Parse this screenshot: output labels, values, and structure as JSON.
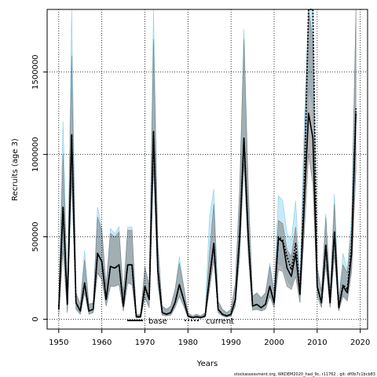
{
  "chart_data": {
    "type": "line",
    "xlabel": "Years",
    "ylabel": "Recruits (age 3)",
    "xlim": [
      1947.3,
      2021.7
    ],
    "ylim": [
      -60000,
      1880000
    ],
    "xticks": [
      1950,
      1960,
      1970,
      1980,
      1990,
      2000,
      2010,
      2020
    ],
    "yticks": [
      0,
      500000,
      1000000,
      1500000
    ],
    "ytick_labels": [
      "0",
      "500000",
      "1000000",
      "1500000"
    ],
    "grid": true,
    "legend_position": "bottom-center",
    "x": [
      1950,
      1951,
      1952,
      1953,
      1954,
      1955,
      1956,
      1957,
      1958,
      1959,
      1960,
      1961,
      1962,
      1963,
      1964,
      1965,
      1966,
      1967,
      1968,
      1969,
      1970,
      1971,
      1972,
      1973,
      1974,
      1975,
      1976,
      1977,
      1978,
      1979,
      1980,
      1981,
      1982,
      1983,
      1984,
      1985,
      1986,
      1987,
      1988,
      1989,
      1990,
      1991,
      1992,
      1993,
      1994,
      1995,
      1996,
      1997,
      1998,
      1999,
      2000,
      2001,
      2002,
      2003,
      2004,
      2005,
      2006,
      2007,
      2008,
      2009,
      2010,
      2011,
      2012,
      2013,
      2014,
      2015,
      2016,
      2017,
      2018,
      2019
    ],
    "series": [
      {
        "name": "base",
        "color": "#000000",
        "dash": "solid",
        "band_color": "#808080",
        "values": [
          60000,
          680000,
          90000,
          1120000,
          100000,
          50000,
          220000,
          50000,
          60000,
          400000,
          350000,
          120000,
          320000,
          310000,
          330000,
          80000,
          330000,
          330000,
          15000,
          15000,
          200000,
          120000,
          1140000,
          300000,
          40000,
          30000,
          40000,
          100000,
          210000,
          120000,
          20000,
          10000,
          15000,
          10000,
          20000,
          250000,
          460000,
          60000,
          30000,
          20000,
          30000,
          120000,
          500000,
          1100000,
          500000,
          80000,
          90000,
          70000,
          90000,
          200000,
          100000,
          490000,
          470000,
          310000,
          260000,
          400000,
          150000,
          700000,
          1250000,
          1100000,
          200000,
          100000,
          450000,
          100000,
          530000,
          70000,
          200000,
          160000,
          400000,
          1250000
        ],
        "lower": [
          20000,
          420000,
          40000,
          860000,
          60000,
          30000,
          160000,
          30000,
          40000,
          280000,
          240000,
          80000,
          200000,
          200000,
          210000,
          50000,
          220000,
          210000,
          8000,
          8000,
          130000,
          70000,
          930000,
          210000,
          25000,
          20000,
          25000,
          70000,
          140000,
          80000,
          12000,
          6000,
          9000,
          6000,
          12000,
          180000,
          360000,
          40000,
          20000,
          12000,
          20000,
          80000,
          380000,
          950000,
          390000,
          55000,
          60000,
          50000,
          60000,
          140000,
          70000,
          300000,
          290000,
          200000,
          180000,
          260000,
          100000,
          520000,
          1000000,
          820000,
          140000,
          70000,
          330000,
          70000,
          390000,
          50000,
          140000,
          110000,
          290000,
          900000
        ],
        "upper": [
          120000,
          1000000,
          150000,
          1600000,
          160000,
          90000,
          360000,
          90000,
          100000,
          620000,
          540000,
          200000,
          520000,
          500000,
          530000,
          150000,
          540000,
          540000,
          30000,
          30000,
          320000,
          200000,
          1700000,
          460000,
          80000,
          60000,
          80000,
          180000,
          340000,
          200000,
          40000,
          20000,
          30000,
          20000,
          40000,
          400000,
          700000,
          110000,
          60000,
          40000,
          60000,
          220000,
          780000,
          1700000,
          780000,
          140000,
          160000,
          130000,
          160000,
          320000,
          170000,
          600000,
          580000,
          420000,
          380000,
          560000,
          230000,
          1000000,
          1880000,
          1700000,
          320000,
          170000,
          620000,
          170000,
          700000,
          120000,
          330000,
          280000,
          560000,
          1880000
        ]
      },
      {
        "name": "current",
        "color": "#000000",
        "dash": "dotted",
        "band_color": "#87ceeb",
        "values": [
          60000,
          680000,
          90000,
          1120000,
          100000,
          50000,
          220000,
          50000,
          60000,
          400000,
          350000,
          120000,
          320000,
          310000,
          330000,
          80000,
          330000,
          330000,
          15000,
          15000,
          200000,
          120000,
          1140000,
          300000,
          40000,
          30000,
          40000,
          100000,
          210000,
          120000,
          20000,
          10000,
          15000,
          10000,
          20000,
          250000,
          460000,
          60000,
          30000,
          20000,
          30000,
          120000,
          500000,
          1100000,
          500000,
          80000,
          90000,
          70000,
          90000,
          200000,
          100000,
          500000,
          480000,
          380000,
          300000,
          460000,
          150000,
          800000,
          1880000,
          1880000,
          200000,
          100000,
          450000,
          100000,
          530000,
          70000,
          210000,
          180000,
          450000,
          1280000
        ],
        "lower": [
          20000,
          420000,
          40000,
          860000,
          60000,
          30000,
          160000,
          30000,
          40000,
          280000,
          240000,
          80000,
          200000,
          200000,
          210000,
          50000,
          220000,
          210000,
          8000,
          8000,
          130000,
          70000,
          930000,
          210000,
          25000,
          20000,
          25000,
          70000,
          140000,
          80000,
          12000,
          6000,
          9000,
          6000,
          12000,
          180000,
          360000,
          40000,
          20000,
          12000,
          20000,
          80000,
          380000,
          950000,
          390000,
          55000,
          60000,
          50000,
          60000,
          140000,
          70000,
          340000,
          320000,
          240000,
          200000,
          300000,
          100000,
          600000,
          1400000,
          1300000,
          140000,
          70000,
          330000,
          70000,
          390000,
          50000,
          150000,
          120000,
          320000,
          950000
        ],
        "upper": [
          120000,
          1200000,
          150000,
          1880000,
          160000,
          90000,
          420000,
          90000,
          100000,
          680000,
          560000,
          200000,
          550000,
          520000,
          560000,
          150000,
          560000,
          560000,
          30000,
          30000,
          320000,
          200000,
          1880000,
          460000,
          80000,
          60000,
          80000,
          180000,
          380000,
          200000,
          40000,
          20000,
          30000,
          20000,
          40000,
          620000,
          790000,
          110000,
          60000,
          40000,
          60000,
          220000,
          800000,
          1760000,
          800000,
          140000,
          160000,
          130000,
          160000,
          340000,
          170000,
          750000,
          720000,
          520000,
          480000,
          720000,
          230000,
          1200000,
          1880000,
          1880000,
          320000,
          170000,
          640000,
          170000,
          760000,
          120000,
          400000,
          300000,
          640000,
          1880000
        ]
      }
    ]
  },
  "footer_text": "stockassessment.org, WKDEM2020_had_9c, r11762 , git: df0b7c1bcb83"
}
